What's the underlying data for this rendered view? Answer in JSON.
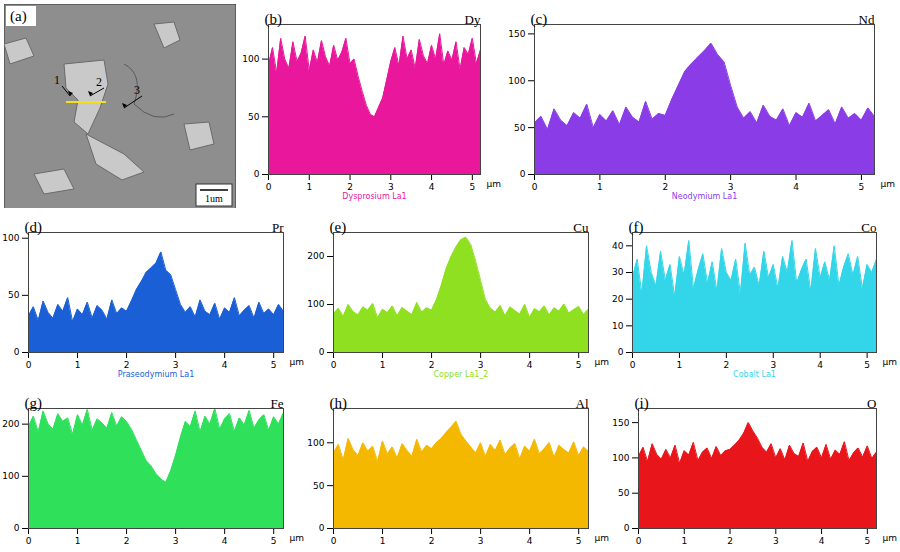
{
  "chart_data": [
    {
      "type": "image",
      "panel": "(a)",
      "labels": [
        "1",
        "2",
        "3"
      ],
      "scale_bar": "1um"
    },
    {
      "type": "area",
      "panel": "(b)",
      "title": "Dy",
      "caption": "Dysprosium La1",
      "x_label": "µm",
      "color": "#e8179b",
      "xlim": [
        0,
        5.2
      ],
      "xticks": [
        0,
        1,
        2,
        3,
        4,
        5
      ],
      "ylim": [
        0,
        130
      ],
      "yticks": [
        0,
        50,
        100
      ],
      "x": [
        0,
        0.1,
        0.2,
        0.3,
        0.4,
        0.5,
        0.6,
        0.7,
        0.8,
        0.9,
        1,
        1.1,
        1.2,
        1.3,
        1.4,
        1.5,
        1.6,
        1.7,
        1.8,
        1.9,
        2,
        2.1,
        2.2,
        2.3,
        2.4,
        2.5,
        2.6,
        2.7,
        2.8,
        2.9,
        3,
        3.1,
        3.2,
        3.3,
        3.4,
        3.5,
        3.6,
        3.7,
        3.8,
        3.9,
        4,
        4.1,
        4.2,
        4.3,
        4.4,
        4.5,
        4.6,
        4.7,
        4.8,
        4.9,
        5,
        5.1,
        5.2
      ],
      "values": [
        95,
        110,
        88,
        118,
        100,
        92,
        115,
        98,
        105,
        120,
        90,
        108,
        97,
        116,
        102,
        94,
        112,
        99,
        106,
        118,
        96,
        100,
        85,
        72,
        60,
        52,
        50,
        58,
        66,
        82,
        98,
        110,
        94,
        120,
        100,
        108,
        92,
        117,
        103,
        96,
        112,
        100,
        122,
        95,
        107,
        99,
        115,
        91,
        110,
        104,
        118,
        96,
        108
      ]
    },
    {
      "type": "area",
      "panel": "(c)",
      "title": "Nd",
      "caption": "Neodymium La1",
      "x_label": "µm",
      "color": "#8a3ce6",
      "xlim": [
        0,
        5.2
      ],
      "xticks": [
        0,
        1,
        2,
        3,
        4,
        5
      ],
      "ylim": [
        0,
        160
      ],
      "yticks": [
        0,
        50,
        100,
        150
      ],
      "x": [
        0,
        0.1,
        0.2,
        0.3,
        0.4,
        0.5,
        0.6,
        0.7,
        0.8,
        0.9,
        1,
        1.1,
        1.2,
        1.3,
        1.4,
        1.5,
        1.6,
        1.7,
        1.8,
        1.9,
        2,
        2.1,
        2.2,
        2.3,
        2.4,
        2.5,
        2.6,
        2.7,
        2.8,
        2.9,
        3,
        3.1,
        3.2,
        3.3,
        3.4,
        3.5,
        3.6,
        3.7,
        3.8,
        3.9,
        4,
        4.1,
        4.2,
        4.3,
        4.4,
        4.5,
        4.6,
        4.7,
        4.8,
        4.9,
        5,
        5.1,
        5.2
      ],
      "values": [
        55,
        62,
        48,
        70,
        58,
        52,
        66,
        60,
        75,
        50,
        64,
        57,
        68,
        53,
        72,
        61,
        56,
        78,
        59,
        65,
        63,
        80,
        95,
        110,
        118,
        125,
        132,
        140,
        128,
        120,
        95,
        72,
        60,
        67,
        55,
        74,
        62,
        58,
        70,
        52,
        66,
        61,
        76,
        57,
        63,
        69,
        54,
        72,
        60,
        65,
        58,
        71,
        62
      ]
    },
    {
      "type": "area",
      "panel": "(d)",
      "title": "Pr",
      "caption": "Praseodymium La1",
      "x_label": "µm",
      "color": "#1a5fd6",
      "xlim": [
        0,
        5.2
      ],
      "xticks": [
        0,
        1,
        2,
        3,
        4,
        5
      ],
      "ylim": [
        0,
        105
      ],
      "yticks": [
        0,
        50,
        100
      ],
      "x": [
        0,
        0.1,
        0.2,
        0.3,
        0.4,
        0.5,
        0.6,
        0.7,
        0.8,
        0.9,
        1,
        1.1,
        1.2,
        1.3,
        1.4,
        1.5,
        1.6,
        1.7,
        1.8,
        1.9,
        2,
        2.1,
        2.2,
        2.3,
        2.4,
        2.5,
        2.6,
        2.7,
        2.8,
        2.9,
        3,
        3.1,
        3.2,
        3.3,
        3.4,
        3.5,
        3.6,
        3.7,
        3.8,
        3.9,
        4,
        4.1,
        4.2,
        4.3,
        4.4,
        4.5,
        4.6,
        4.7,
        4.8,
        4.9,
        5,
        5.1,
        5.2
      ],
      "values": [
        32,
        40,
        28,
        45,
        35,
        30,
        42,
        36,
        48,
        27,
        38,
        33,
        44,
        30,
        41,
        37,
        29,
        46,
        34,
        39,
        36,
        45,
        55,
        62,
        70,
        74,
        78,
        88,
        72,
        68,
        55,
        42,
        35,
        40,
        31,
        46,
        36,
        33,
        43,
        29,
        39,
        35,
        48,
        32,
        37,
        41,
        30,
        44,
        34,
        38,
        33,
        42,
        36
      ]
    },
    {
      "type": "area",
      "panel": "(e)",
      "title": "Cu",
      "caption": "Copper La1_2",
      "x_label": "µm",
      "color": "#8fe020",
      "xlim": [
        0,
        5.2
      ],
      "xticks": [
        0,
        1,
        2,
        3,
        4,
        5
      ],
      "ylim": [
        0,
        250
      ],
      "yticks": [
        0,
        100,
        200
      ],
      "x": [
        0,
        0.1,
        0.2,
        0.3,
        0.4,
        0.5,
        0.6,
        0.7,
        0.8,
        0.9,
        1,
        1.1,
        1.2,
        1.3,
        1.4,
        1.5,
        1.6,
        1.7,
        1.8,
        1.9,
        2,
        2.1,
        2.2,
        2.3,
        2.4,
        2.5,
        2.6,
        2.7,
        2.8,
        2.9,
        3,
        3.1,
        3.2,
        3.3,
        3.4,
        3.5,
        3.6,
        3.7,
        3.8,
        3.9,
        4,
        4.1,
        4.2,
        4.3,
        4.4,
        4.5,
        4.6,
        4.7,
        4.8,
        4.9,
        5,
        5.1,
        5.2
      ],
      "values": [
        80,
        92,
        75,
        100,
        85,
        78,
        95,
        88,
        102,
        72,
        90,
        83,
        97,
        76,
        94,
        86,
        79,
        104,
        84,
        93,
        88,
        110,
        140,
        175,
        200,
        220,
        235,
        240,
        225,
        190,
        150,
        110,
        92,
        84,
        98,
        76,
        95,
        87,
        80,
        100,
        73,
        91,
        85,
        97,
        78,
        93,
        86,
        101,
        82,
        89,
        96,
        79,
        90
      ]
    },
    {
      "type": "area",
      "panel": "(f)",
      "title": "Co",
      "caption": "Cobalt La1",
      "x_label": "µm",
      "color": "#33d6e8",
      "xlim": [
        0,
        5.2
      ],
      "xticks": [
        0,
        1,
        2,
        3,
        4,
        5
      ],
      "ylim": [
        0,
        45
      ],
      "yticks": [
        0,
        10,
        20,
        30,
        40
      ],
      "x": [
        0,
        0.1,
        0.2,
        0.3,
        0.4,
        0.5,
        0.6,
        0.7,
        0.8,
        0.9,
        1,
        1.1,
        1.2,
        1.3,
        1.4,
        1.5,
        1.6,
        1.7,
        1.8,
        1.9,
        2,
        2.1,
        2.2,
        2.3,
        2.4,
        2.5,
        2.6,
        2.7,
        2.8,
        2.9,
        3,
        3.1,
        3.2,
        3.3,
        3.4,
        3.5,
        3.6,
        3.7,
        3.8,
        3.9,
        4,
        4.1,
        4.2,
        4.3,
        4.4,
        4.5,
        4.6,
        4.7,
        4.8,
        4.9,
        5,
        5.1,
        5.2
      ],
      "values": [
        28,
        35,
        22,
        40,
        30,
        25,
        38,
        27,
        33,
        21,
        36,
        29,
        42,
        24,
        31,
        37,
        26,
        34,
        23,
        39,
        30,
        27,
        35,
        22,
        41,
        29,
        32,
        25,
        38,
        28,
        33,
        24,
        36,
        30,
        42,
        26,
        31,
        35,
        23,
        39,
        28,
        34,
        27,
        40,
        25,
        32,
        37,
        29,
        36,
        24,
        33,
        30,
        35
      ]
    },
    {
      "type": "area",
      "panel": "(g)",
      "title": "Fe",
      "x_label": "µm",
      "color": "#2ee05a",
      "xlim": [
        0,
        5.2
      ],
      "xticks": [
        0,
        1,
        2,
        3,
        4,
        5
      ],
      "ylim": [
        0,
        230
      ],
      "yticks": [
        0,
        100,
        200
      ],
      "x": [
        0,
        0.1,
        0.2,
        0.3,
        0.4,
        0.5,
        0.6,
        0.7,
        0.8,
        0.9,
        1,
        1.1,
        1.2,
        1.3,
        1.4,
        1.5,
        1.6,
        1.7,
        1.8,
        1.9,
        2,
        2.1,
        2.2,
        2.3,
        2.4,
        2.5,
        2.6,
        2.7,
        2.8,
        2.9,
        3,
        3.1,
        3.2,
        3.3,
        3.4,
        3.5,
        3.6,
        3.7,
        3.8,
        3.9,
        4,
        4.1,
        4.2,
        4.3,
        4.4,
        4.5,
        4.6,
        4.7,
        4.8,
        4.9,
        5,
        5.1,
        5.2
      ],
      "values": [
        195,
        215,
        185,
        225,
        200,
        190,
        220,
        205,
        212,
        180,
        218,
        198,
        228,
        188,
        210,
        202,
        192,
        222,
        196,
        214,
        205,
        190,
        170,
        150,
        130,
        120,
        105,
        95,
        88,
        110,
        140,
        175,
        205,
        195,
        225,
        185,
        215,
        200,
        230,
        190,
        210,
        220,
        186,
        212,
        198,
        226,
        192,
        208,
        218,
        188,
        214,
        200,
        222
      ]
    },
    {
      "type": "area",
      "panel": "(h)",
      "title": "Al",
      "x_label": "µm",
      "color": "#f5b800",
      "xlim": [
        0,
        5.2
      ],
      "xticks": [
        0,
        1,
        2,
        3,
        4,
        5
      ],
      "ylim": [
        0,
        140
      ],
      "yticks": [
        0,
        50,
        100
      ],
      "x": [
        0,
        0.1,
        0.2,
        0.3,
        0.4,
        0.5,
        0.6,
        0.7,
        0.8,
        0.9,
        1,
        1.1,
        1.2,
        1.3,
        1.4,
        1.5,
        1.6,
        1.7,
        1.8,
        1.9,
        2,
        2.1,
        2.2,
        2.3,
        2.4,
        2.5,
        2.6,
        2.7,
        2.8,
        2.9,
        3,
        3.1,
        3.2,
        3.3,
        3.4,
        3.5,
        3.6,
        3.7,
        3.8,
        3.9,
        4,
        4.1,
        4.2,
        4.3,
        4.4,
        4.5,
        4.6,
        4.7,
        4.8,
        4.9,
        5,
        5.1,
        5.2
      ],
      "values": [
        88,
        98,
        80,
        105,
        92,
        85,
        100,
        90,
        96,
        78,
        102,
        87,
        95,
        82,
        99,
        91,
        84,
        104,
        89,
        97,
        93,
        100,
        105,
        112,
        118,
        125,
        110,
        102,
        95,
        88,
        100,
        84,
        98,
        91,
        103,
        86,
        94,
        99,
        81,
        96,
        90,
        104,
        87,
        93,
        100,
        83,
        97,
        92,
        88,
        101,
        85,
        95,
        90
      ]
    },
    {
      "type": "area",
      "panel": "(i)",
      "title": "O",
      "x_label": "µm",
      "color": "#e8161b",
      "xlim": [
        0,
        5.2
      ],
      "xticks": [
        0,
        1,
        2,
        3,
        4,
        5
      ],
      "ylim": [
        0,
        170
      ],
      "yticks": [
        0,
        50,
        100,
        150
      ],
      "x": [
        0,
        0.1,
        0.2,
        0.3,
        0.4,
        0.5,
        0.6,
        0.7,
        0.8,
        0.9,
        1,
        1.1,
        1.2,
        1.3,
        1.4,
        1.5,
        1.6,
        1.7,
        1.8,
        1.9,
        2,
        2.1,
        2.2,
        2.3,
        2.4,
        2.5,
        2.6,
        2.7,
        2.8,
        2.9,
        3,
        3.1,
        3.2,
        3.3,
        3.4,
        3.5,
        3.6,
        3.7,
        3.8,
        3.9,
        4,
        4.1,
        4.2,
        4.3,
        4.4,
        4.5,
        4.6,
        4.7,
        4.8,
        4.9,
        5,
        5.1,
        5.2
      ],
      "values": [
        102,
        115,
        95,
        120,
        105,
        98,
        112,
        100,
        118,
        92,
        110,
        104,
        122,
        96,
        108,
        114,
        99,
        116,
        103,
        110,
        112,
        118,
        125,
        135,
        150,
        138,
        128,
        115,
        108,
        120,
        100,
        113,
        97,
        118,
        106,
        102,
        121,
        95,
        109,
        115,
        100,
        119,
        98,
        111,
        105,
        123,
        96,
        107,
        114,
        101,
        117,
        99,
        108
      ]
    }
  ]
}
